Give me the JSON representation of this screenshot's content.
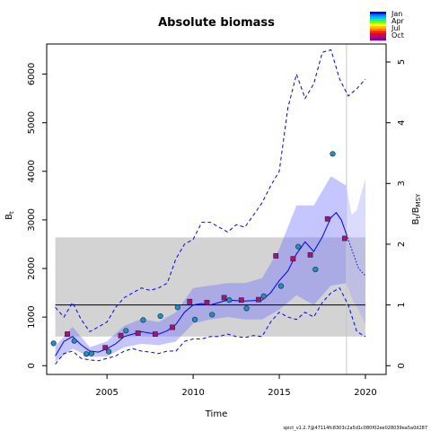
{
  "chart_data": {
    "type": "line",
    "title": "Absolute biomass",
    "xlabel": "Time",
    "ylabel_left": "B_t",
    "ylabel_right": "B_t/B_MSY",
    "xlim": [
      2001.5,
      2021.2
    ],
    "ylim": [
      -180,
      6620
    ],
    "right_axis_factor": 1250,
    "x_ticks": [
      2005,
      2010,
      2015,
      2020
    ],
    "y_ticks": [
      0,
      1000,
      2000,
      3000,
      4000,
      5000,
      6000
    ],
    "y_right_ticks": [
      0,
      1,
      2,
      3,
      4,
      5
    ],
    "bmsy_band": {
      "x0": 2002,
      "x1": 2020,
      "low": 600,
      "high": 2640
    },
    "bmsy_line": 1250,
    "vline_x": 2018.9,
    "series": [
      {
        "style": "median",
        "color": "#0000ff",
        "x": [
          2002,
          2002.5,
          2003,
          2003.5,
          2004,
          2004.5,
          2005,
          2005.5,
          2006,
          2006.5,
          2007,
          2007.5,
          2008,
          2008.5,
          2009,
          2009.5,
          2010,
          2010.5,
          2011,
          2011.5,
          2012,
          2012.5,
          2013,
          2013.5,
          2014,
          2014.5,
          2015,
          2015.5,
          2016,
          2016.5,
          2017,
          2017.5,
          2018,
          2018.3,
          2018.6,
          2018.9
        ],
        "y": [
          200,
          500,
          600,
          430,
          300,
          280,
          350,
          450,
          600,
          650,
          700,
          670,
          650,
          720,
          850,
          1100,
          1250,
          1280,
          1250,
          1300,
          1350,
          1340,
          1330,
          1340,
          1350,
          1500,
          1750,
          1950,
          2300,
          2550,
          2350,
          2650,
          3050,
          3150,
          3000,
          2700
        ]
      },
      {
        "style": "forecast",
        "color": "#0000ff",
        "x": [
          2018.9,
          2019.3,
          2019.6,
          2020
        ],
        "y": [
          2700,
          2300,
          2000,
          1850
        ]
      },
      {
        "style": "upper_ci",
        "color": "#0000ff",
        "x": [
          2002,
          2002.5,
          2003,
          2003.5,
          2004,
          2004.5,
          2005,
          2005.5,
          2006,
          2006.5,
          2007,
          2007.5,
          2008,
          2008.5,
          2009,
          2009.5,
          2010,
          2010.5,
          2011,
          2011.5,
          2012,
          2012.5,
          2013,
          2013.5,
          2014,
          2014.5,
          2015,
          2015.5,
          2016,
          2016.5,
          2017,
          2017.5,
          2018,
          2018.5,
          2019,
          2019.5,
          2020
        ],
        "y": [
          1200,
          1000,
          1300,
          950,
          700,
          800,
          900,
          1200,
          1400,
          1500,
          1600,
          1550,
          1600,
          1700,
          2200,
          2500,
          2600,
          2950,
          2950,
          2850,
          2750,
          2900,
          2850,
          3100,
          3350,
          3700,
          4000,
          5300,
          6000,
          5500,
          5800,
          6450,
          6500,
          5900,
          5550,
          5700,
          5900
        ]
      },
      {
        "style": "lower_ci",
        "color": "#0000ff",
        "x": [
          2002,
          2002.5,
          2003,
          2003.5,
          2004,
          2004.5,
          2005,
          2005.5,
          2006,
          2006.5,
          2007,
          2007.5,
          2008,
          2008.5,
          2009,
          2009.5,
          2010,
          2010.5,
          2011,
          2011.5,
          2012,
          2012.5,
          2013,
          2013.5,
          2014,
          2014.5,
          2015,
          2015.5,
          2016,
          2016.5,
          2017,
          2017.5,
          2018,
          2018.5,
          2019,
          2019.5,
          2020
        ],
        "y": [
          30,
          250,
          300,
          150,
          120,
          100,
          150,
          200,
          300,
          350,
          300,
          280,
          250,
          300,
          300,
          500,
          550,
          550,
          600,
          600,
          650,
          600,
          580,
          620,
          600,
          900,
          1100,
          1000,
          950,
          1100,
          1000,
          1300,
          1500,
          1600,
          1250,
          700,
          600
        ]
      }
    ],
    "bands": [
      {
        "fill": "#6666ff",
        "opacity": 0.38,
        "x": [
          2002,
          2003,
          2004,
          2005,
          2006,
          2007,
          2008,
          2009,
          2010,
          2011,
          2012,
          2013,
          2014,
          2015,
          2016,
          2017,
          2018,
          2018.9
        ],
        "low": [
          80,
          350,
          180,
          190,
          380,
          450,
          420,
          500,
          870,
          950,
          1000,
          950,
          950,
          1150,
          1450,
          1250,
          1650,
          1700
        ],
        "high": [
          400,
          800,
          380,
          500,
          820,
          960,
          900,
          1100,
          1600,
          1650,
          1700,
          1700,
          1800,
          2400,
          3300,
          3300,
          3900,
          3700
        ]
      },
      {
        "fill": "#9999ff",
        "opacity": 0.35,
        "x": [
          2018.9,
          2019.2,
          2019.5,
          2019.8,
          2020
        ],
        "low": [
          1700,
          1400,
          1200,
          1000,
          850
        ],
        "high": [
          3700,
          3100,
          3200,
          3600,
          3850
        ]
      }
    ],
    "observations": [
      {
        "x": 2001.9,
        "y": 460,
        "color": "#1e90c0"
      },
      {
        "x": 2002.7,
        "y": 650,
        "color": "#b0106a"
      },
      {
        "x": 2003.1,
        "y": 510,
        "color": "#1e90c0"
      },
      {
        "x": 2003.8,
        "y": 240,
        "color": "#1e90c0"
      },
      {
        "x": 2004.1,
        "y": 250,
        "color": "#1e90c0"
      },
      {
        "x": 2004.9,
        "y": 370,
        "color": "#b0106a"
      },
      {
        "x": 2005.1,
        "y": 290,
        "color": "#1e90c0"
      },
      {
        "x": 2005.8,
        "y": 620,
        "color": "#b0106a"
      },
      {
        "x": 2006.1,
        "y": 720,
        "color": "#1e90c0"
      },
      {
        "x": 2006.8,
        "y": 670,
        "color": "#b0106a"
      },
      {
        "x": 2007.1,
        "y": 940,
        "color": "#1e90c0"
      },
      {
        "x": 2007.8,
        "y": 650,
        "color": "#b0106a"
      },
      {
        "x": 2008.1,
        "y": 1020,
        "color": "#1e90c0"
      },
      {
        "x": 2008.8,
        "y": 790,
        "color": "#b0106a"
      },
      {
        "x": 2009.1,
        "y": 1200,
        "color": "#1e90c0"
      },
      {
        "x": 2009.8,
        "y": 1320,
        "color": "#b0106a"
      },
      {
        "x": 2010.1,
        "y": 950,
        "color": "#1e90c0"
      },
      {
        "x": 2010.8,
        "y": 1300,
        "color": "#b0106a"
      },
      {
        "x": 2011.1,
        "y": 1050,
        "color": "#1e90c0"
      },
      {
        "x": 2011.8,
        "y": 1400,
        "color": "#b0106a"
      },
      {
        "x": 2012.1,
        "y": 1350,
        "color": "#1e90c0"
      },
      {
        "x": 2012.8,
        "y": 1350,
        "color": "#b0106a"
      },
      {
        "x": 2013.1,
        "y": 1180,
        "color": "#1e90c0"
      },
      {
        "x": 2013.8,
        "y": 1360,
        "color": "#b0106a"
      },
      {
        "x": 2014.1,
        "y": 1430,
        "color": "#1e90c0"
      },
      {
        "x": 2014.8,
        "y": 2260,
        "color": "#b0106a"
      },
      {
        "x": 2015.1,
        "y": 1640,
        "color": "#1e90c0"
      },
      {
        "x": 2015.8,
        "y": 2200,
        "color": "#b0106a"
      },
      {
        "x": 2016.1,
        "y": 2450,
        "color": "#1e90c0"
      },
      {
        "x": 2016.8,
        "y": 2280,
        "color": "#b0106a"
      },
      {
        "x": 2017.1,
        "y": 1980,
        "color": "#1e90c0"
      },
      {
        "x": 2017.8,
        "y": 3020,
        "color": "#b0106a"
      },
      {
        "x": 2018.1,
        "y": 4360,
        "color": "#1e90c0"
      },
      {
        "x": 2018.8,
        "y": 2620,
        "color": "#b0106a"
      }
    ]
  },
  "legend": {
    "labels": [
      "Jan",
      "Apr",
      "Jul",
      "Oct"
    ],
    "gradient_colors": [
      "#0000ff",
      "#0080ff",
      "#00c0ff",
      "#00ff80",
      "#80ff00",
      "#ffff00",
      "#ffc000",
      "#ff8000",
      "#ff2000",
      "#e00040",
      "#b00080",
      "#8000a0"
    ]
  },
  "footer_text": "spict_v1.2.7@47114fc8303c2a5d1c080f02ee028039ea5a0d287"
}
